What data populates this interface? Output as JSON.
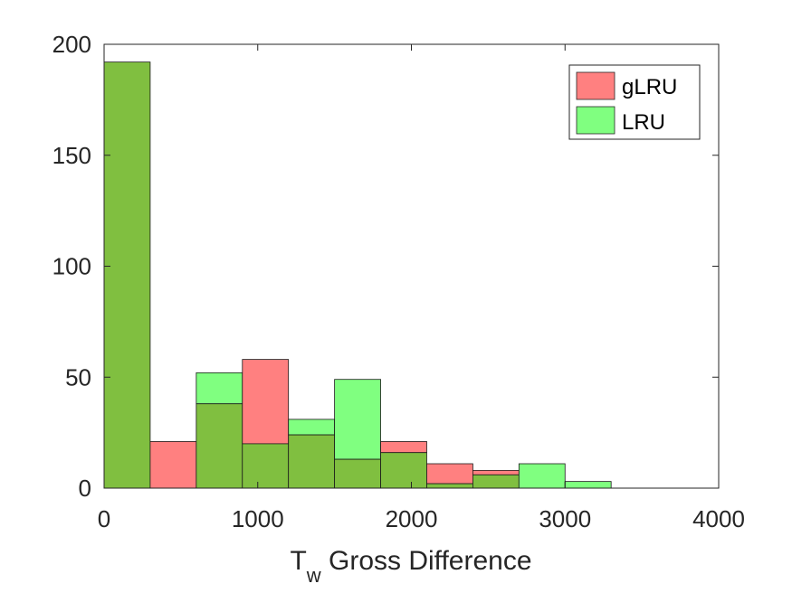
{
  "chart_data": {
    "type": "bar",
    "subtype": "overlaid-histogram",
    "xlabel_main": "T",
    "xlabel_sub": "w",
    "xlabel_rest": " Gross Difference",
    "xlim": [
      0,
      4000
    ],
    "ylim": [
      0,
      200
    ],
    "xticks": [
      "0",
      "1000",
      "2000",
      "3000",
      "4000"
    ],
    "yticks": [
      "0",
      "50",
      "100",
      "150",
      "200"
    ],
    "bin_edges": [
      0,
      300,
      600,
      900,
      1200,
      1500,
      1800,
      2100,
      2400,
      2700,
      3000,
      3300
    ],
    "series": [
      {
        "name": "gLRU",
        "color": "#ff8080",
        "values": [
          192,
          21,
          38,
          58,
          24,
          13,
          21,
          11,
          8,
          0,
          0
        ]
      },
      {
        "name": "LRU",
        "color": "#80ff80",
        "values": [
          192,
          0,
          52,
          20,
          31,
          49,
          16,
          2,
          6,
          11,
          3
        ]
      }
    ],
    "overlap_color": "#80bf40",
    "legend": {
      "position": "top-right"
    },
    "grid": false
  }
}
